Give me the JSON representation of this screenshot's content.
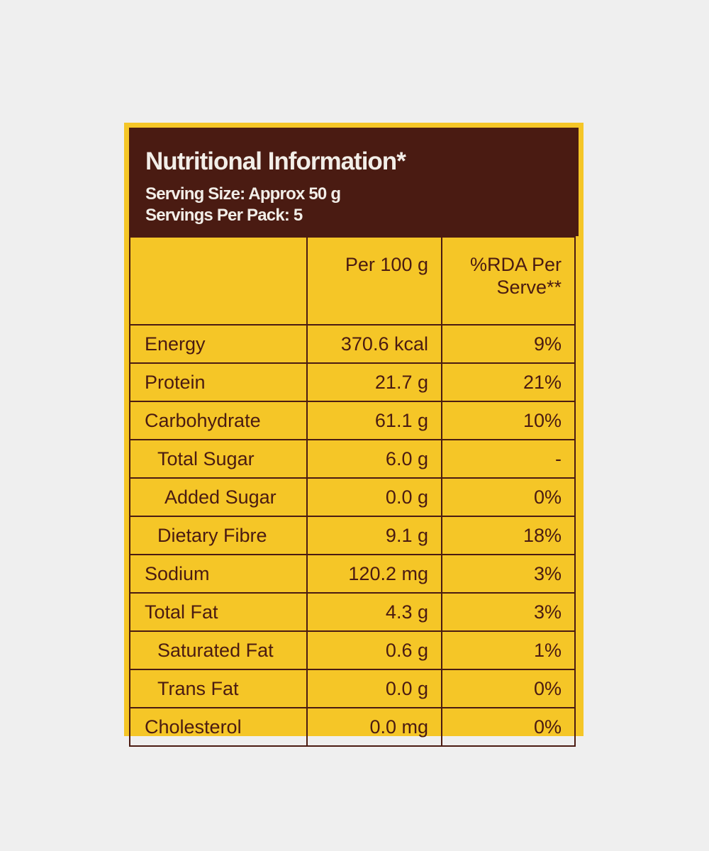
{
  "header": {
    "title": "Nutritional Information*",
    "serving_size": "Serving Size: Approx 50 g",
    "servings_per_pack": "Servings Per Pack: 5"
  },
  "table": {
    "columns": [
      "",
      "Per 100 g",
      "%RDA Per Serve**"
    ],
    "rows": [
      {
        "name": "Energy",
        "per100": "370.6 kcal",
        "rda": "9%",
        "indent": 0
      },
      {
        "name": "Protein",
        "per100": "21.7 g",
        "rda": "21%",
        "indent": 0
      },
      {
        "name": "Carbohydrate",
        "per100": "61.1 g",
        "rda": "10%",
        "indent": 0
      },
      {
        "name": "Total Sugar",
        "per100": "6.0 g",
        "rda": "-",
        "indent": 1
      },
      {
        "name": "Added Sugar",
        "per100": "0.0 g",
        "rda": "0%",
        "indent": 2
      },
      {
        "name": "Dietary Fibre",
        "per100": "9.1 g",
        "rda": "18%",
        "indent": 1
      },
      {
        "name": "Sodium",
        "per100": "120.2 mg",
        "rda": "3%",
        "indent": 0
      },
      {
        "name": "Total Fat",
        "per100": "4.3 g",
        "rda": "3%",
        "indent": 0
      },
      {
        "name": "Saturated Fat",
        "per100": "0.6 g",
        "rda": "1%",
        "indent": 1
      },
      {
        "name": "Trans Fat",
        "per100": "0.0 g",
        "rda": "0%",
        "indent": 1
      },
      {
        "name": "Cholesterol",
        "per100": "0.0 mg",
        "rda": "0%",
        "indent": 0
      }
    ]
  },
  "colors": {
    "brown": "#4a1b12",
    "yellow": "#f5c627",
    "background": "#efefef"
  }
}
